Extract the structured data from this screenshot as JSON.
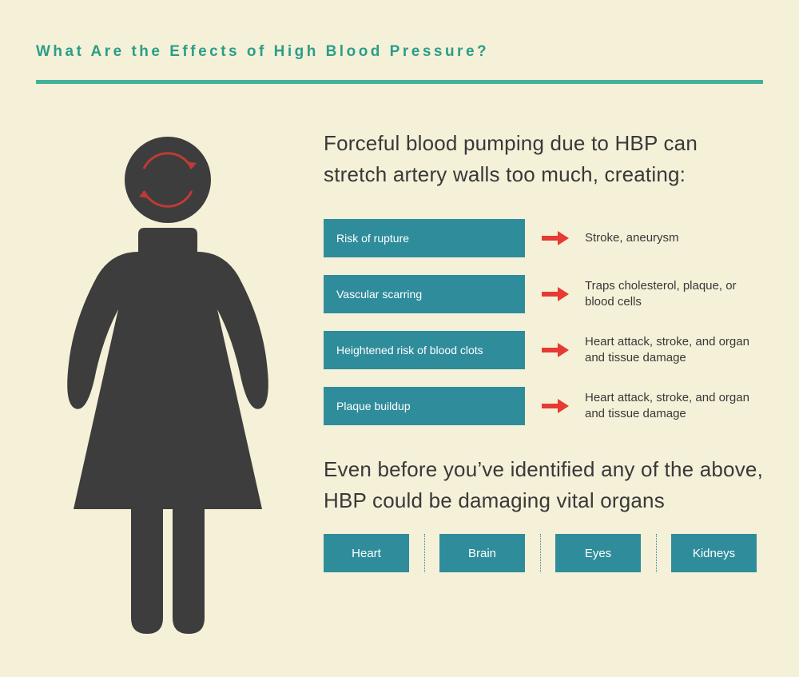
{
  "colors": {
    "page_bg": "#f5f0d8",
    "heading_color": "#2a9e87",
    "rule_color": "#42b29b",
    "text_dark": "#393939",
    "figure_fill": "#3d3d3d",
    "box_fill": "#2f8c9b",
    "arrow_color": "#e63a34",
    "circle_arrow": "#c03a35",
    "divider_color": "#2f8c9b"
  },
  "heading": "What Are the Effects of High Blood Pressure?",
  "intro": "Forceful blood pumping due to HBP can stretch artery walls too much, creating:",
  "risks": [
    {
      "label": "Risk of rupture",
      "consequence": "Stroke, aneurysm"
    },
    {
      "label": "Vascular scarring",
      "consequence": "Traps cholesterol, plaque, or blood cells"
    },
    {
      "label": "Heightened risk of blood clots",
      "consequence": "Heart attack, stroke, and organ and tissue damage"
    },
    {
      "label": "Plaque buildup",
      "consequence": "Heart attack, stroke, and organ and tissue damage"
    }
  ],
  "subtext": "Even before you’ve identified any of the above, HBP could be damaging vital organs",
  "organs": [
    "Heart",
    "Brain",
    "Eyes",
    "Kidneys"
  ]
}
